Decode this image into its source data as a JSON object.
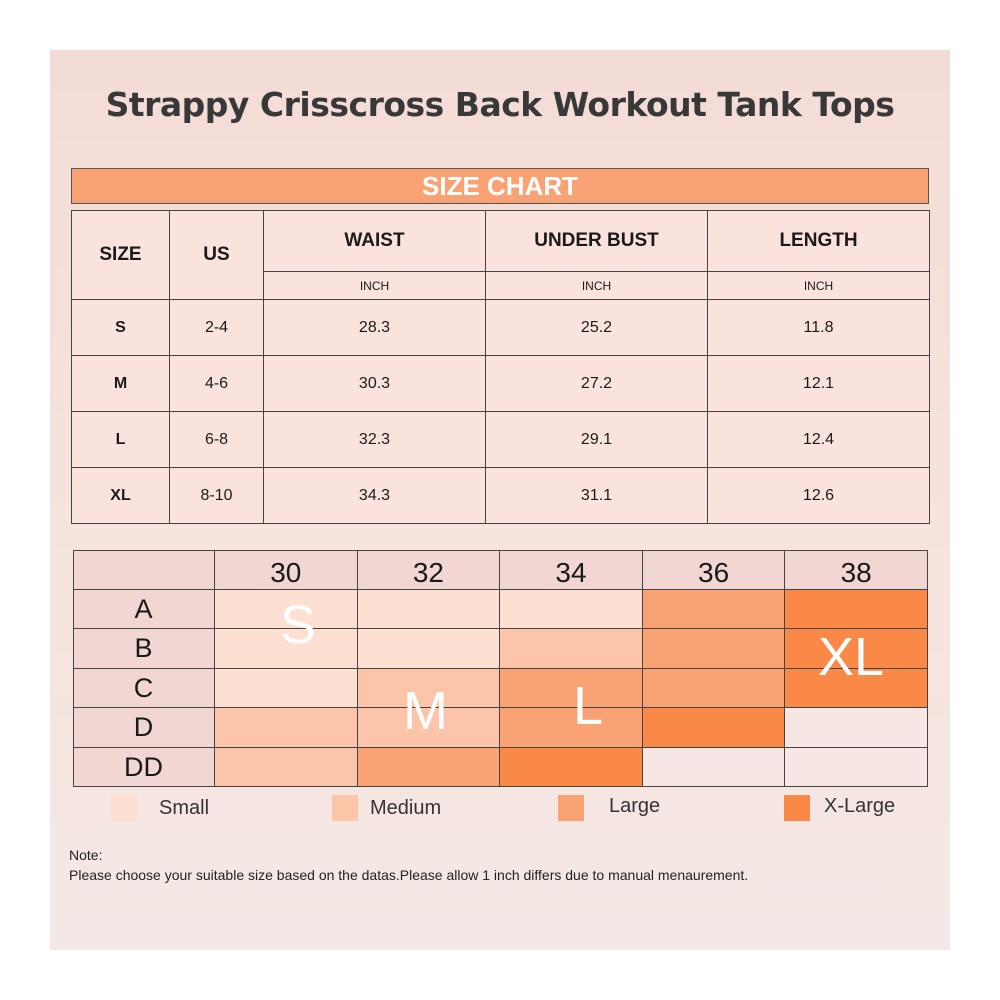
{
  "title": "Strappy Crisscross Back Workout Tank Tops",
  "size_chart": {
    "heading": "SIZE CHART",
    "columns": [
      "SIZE",
      "US",
      "WAIST",
      "UNDER BUST",
      "LENGTH"
    ],
    "unit": "INCH",
    "rows": [
      {
        "size": "S",
        "us": "2-4",
        "waist": "28.3",
        "under_bust": "25.2",
        "length": "11.8"
      },
      {
        "size": "M",
        "us": "4-6",
        "waist": "30.3",
        "under_bust": "27.2",
        "length": "12.1"
      },
      {
        "size": "L",
        "us": "6-8",
        "waist": "32.3",
        "under_bust": "29.1",
        "length": "12.4"
      },
      {
        "size": "XL",
        "us": "8-10",
        "waist": "34.3",
        "under_bust": "31.1",
        "length": "12.6"
      }
    ]
  },
  "bra_grid": {
    "bands": [
      "30",
      "32",
      "34",
      "36",
      "38"
    ],
    "cups": [
      "A",
      "B",
      "C",
      "D",
      "DD"
    ],
    "cells": [
      [
        "Small",
        "Small",
        "Small",
        "Large",
        "X-Large"
      ],
      [
        "Small",
        "Small",
        "Medium",
        "Large",
        "X-Large"
      ],
      [
        "Small",
        "Medium",
        "Large",
        "Large",
        "X-Large"
      ],
      [
        "Medium",
        "Medium",
        "Large",
        "X-Large",
        ""
      ],
      [
        "Medium",
        "Large",
        "X-Large",
        "",
        ""
      ]
    ],
    "size_labels": {
      "s": "S",
      "m": "M",
      "l": "L",
      "xl": "XL"
    }
  },
  "legend": [
    {
      "label": "Small",
      "color": "#fde0d1"
    },
    {
      "label": "Medium",
      "color": "#fcc5aa"
    },
    {
      "label": "Large",
      "color": "#f9a273"
    },
    {
      "label": "X-Large",
      "color": "#fa8847"
    }
  ],
  "colors": {
    "Small": "#fde0d1",
    "Medium": "#fcc5aa",
    "Large": "#f9a273",
    "X-Large": "#fa8847",
    "empty": "#f6e6e4",
    "header_bar": "#f9a273"
  },
  "note": {
    "title": "Note:",
    "text": "Please choose your suitable size based on the datas.Please allow 1 inch differs due to manual menaurement."
  }
}
